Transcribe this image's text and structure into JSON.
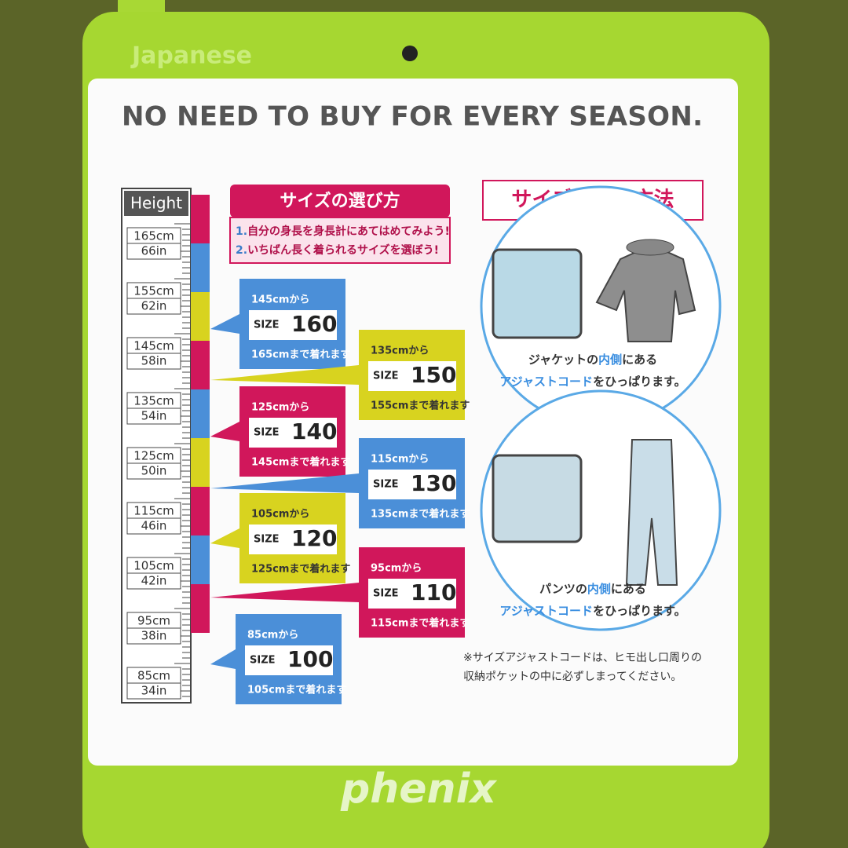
{
  "tag": {
    "top_label": "Japanese",
    "headline": "NO NEED TO BUY FOR EVERY SEASON.",
    "ruler": {
      "header": "Height",
      "marks": [
        {
          "cm": "165cm",
          "in": "66in"
        },
        {
          "cm": "155cm",
          "in": "62in"
        },
        {
          "cm": "145cm",
          "in": "58in"
        },
        {
          "cm": "135cm",
          "in": "54in"
        },
        {
          "cm": "125cm",
          "in": "50in"
        },
        {
          "cm": "115cm",
          "in": "46in"
        },
        {
          "cm": "105cm",
          "in": "42in"
        },
        {
          "cm": "95cm",
          "in": "38in"
        },
        {
          "cm": "85cm",
          "in": "34in"
        }
      ]
    },
    "how_to_choose": {
      "title": "サイズの選び方",
      "steps": [
        {
          "number": "1.",
          "text": "自分の身長を身長計にあてはめてみよう!"
        },
        {
          "number": "2.",
          "text": "いちばん長く着られるサイズを選ぼう!"
        }
      ]
    },
    "sizes": [
      {
        "from": "145cmから",
        "size_label": "SIZE",
        "size": 160,
        "to": "165cmまで着れます"
      },
      {
        "from": "135cmから",
        "size_label": "SIZE",
        "size": 150,
        "to": "155cmまで着れます"
      },
      {
        "from": "125cmから",
        "size_label": "SIZE",
        "size": 140,
        "to": "145cmまで着れます"
      },
      {
        "from": "115cmから",
        "size_label": "SIZE",
        "size": 130,
        "to": "135cmまで着れます"
      },
      {
        "from": "105cmから",
        "size_label": "SIZE",
        "size": 120,
        "to": "125cmまで着れます"
      },
      {
        "from": "95cmから",
        "size_label": "SIZE",
        "size": 110,
        "to": "115cmまで着れます"
      },
      {
        "from": "85cmから",
        "size_label": "SIZE",
        "size": 100,
        "to": "105cmまで着れます"
      }
    ],
    "adjust": {
      "title": "サイズ調節の方法",
      "jacket": [
        [
          "ジャケットの",
          "内側",
          "にある"
        ],
        [
          "アジャストコード",
          "をひっぱります。"
        ]
      ],
      "pants": [
        [
          "パンツの",
          "内側",
          "にある"
        ],
        [
          "アジャストコード",
          "をひっぱります。"
        ]
      ],
      "note": [
        "※サイズアジャストコードは、ヒモ出し口周りの",
        "収納ポケットの中に必ずしまってください。"
      ]
    },
    "brand": "phenix"
  }
}
